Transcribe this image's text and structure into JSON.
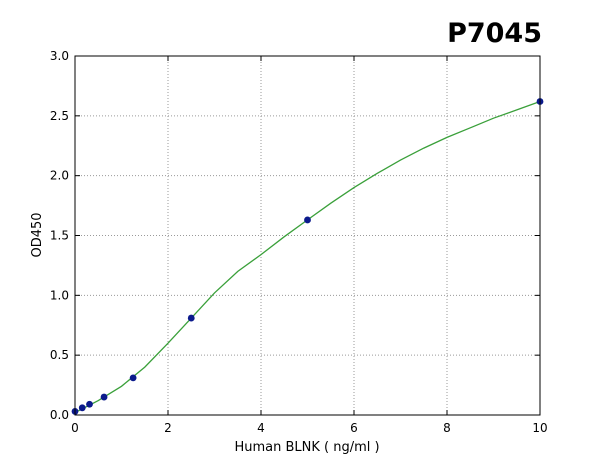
{
  "chart_data": {
    "type": "scatter",
    "title": "P7045",
    "xlabel": "Human BLNK ( ng/ml )",
    "ylabel": "OD450",
    "xlim": [
      0,
      10
    ],
    "ylim": [
      0,
      3.0
    ],
    "x_ticks": [
      "0",
      "2",
      "4",
      "6",
      "8",
      "10"
    ],
    "y_ticks": [
      "0.0",
      "0.5",
      "1.0",
      "1.5",
      "2.0",
      "2.5",
      "3.0"
    ],
    "grid": true,
    "legend": "none",
    "series": [
      {
        "kind": "points",
        "color": "#0b1a8c",
        "x": [
          0,
          0.156,
          0.312,
          0.625,
          1.25,
          2.5,
          5,
          10
        ],
        "y": [
          0.03,
          0.06,
          0.09,
          0.15,
          0.31,
          0.81,
          1.63,
          2.62
        ]
      },
      {
        "kind": "fit-curve",
        "color": "#3aa03a",
        "x": [
          0,
          0.5,
          1,
          1.5,
          2,
          2.5,
          3,
          3.5,
          4,
          4.5,
          5,
          5.5,
          6,
          6.5,
          7,
          7.5,
          8,
          8.5,
          9,
          9.5,
          10
        ],
        "y": [
          0.02,
          0.12,
          0.24,
          0.4,
          0.6,
          0.81,
          1.02,
          1.2,
          1.34,
          1.49,
          1.63,
          1.77,
          1.9,
          2.02,
          2.13,
          2.23,
          2.32,
          2.4,
          2.48,
          2.55,
          2.62
        ]
      }
    ]
  }
}
